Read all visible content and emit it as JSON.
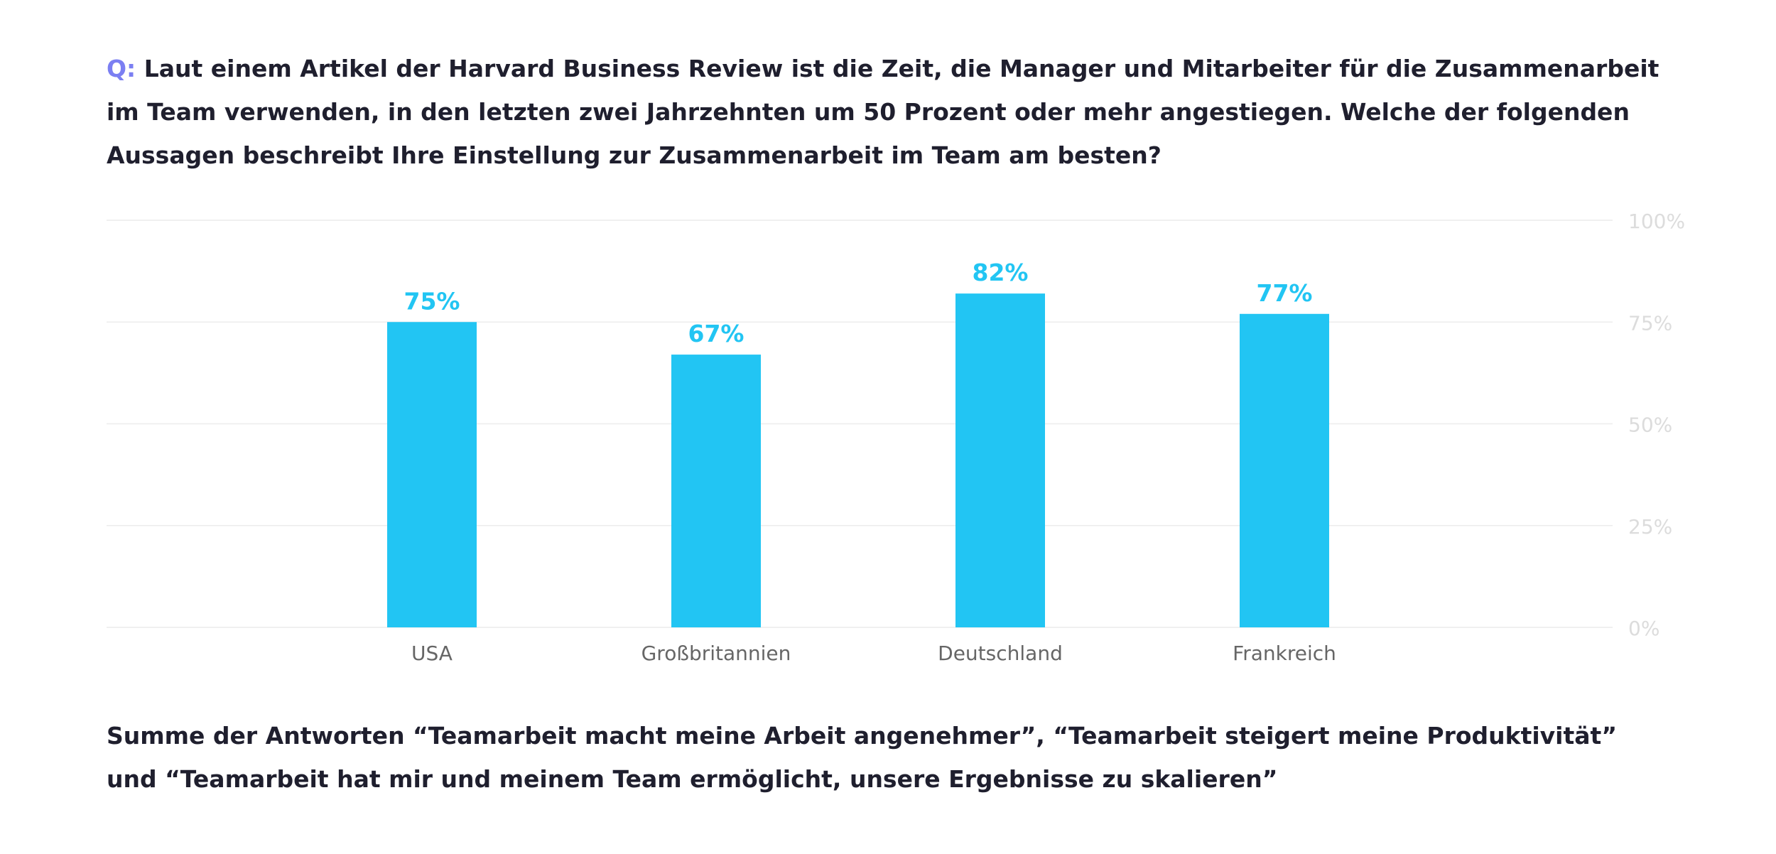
{
  "question": {
    "prefix": "Q:",
    "text": "Laut einem Artikel der Harvard Business Review ist die Zeit, die Manager und Mitarbeiter für die Zusammenarbeit im Team verwenden, in den letzten zwei Jahrzehnten um 50 Prozent oder mehr angestiegen. Welche der folgenden Aussagen beschreibt Ihre Einstellung zur Zusammenarbeit im Team am besten?"
  },
  "footnote": "Summe der Antworten “Teamarbeit macht meine Arbeit angenehmer”, “Teamarbeit steigert meine Produktivität” und “Teamarbeit hat mir und meinem Team ermöglicht, unsere Ergebnisse zu skalieren”",
  "colors": {
    "bar": "#22c5f3",
    "value_label": "#22c5f3",
    "prefix": "#7b7ff2",
    "grid": "#ececec",
    "axis_label": "#dcdcdc",
    "category_label": "#666666"
  },
  "chart_data": {
    "type": "bar",
    "categories": [
      "USA",
      "Großbritannien",
      "Deutschland",
      "Frankreich"
    ],
    "values": [
      75,
      67,
      82,
      77
    ],
    "value_labels": [
      "75%",
      "67%",
      "82%",
      "77%"
    ],
    "ylim": [
      0,
      100
    ],
    "yticks": [
      0,
      25,
      50,
      75,
      100
    ],
    "ytick_labels": [
      "0%",
      "25%",
      "50%",
      "75%",
      "100%"
    ],
    "y_axis_side": "right",
    "grid": true
  }
}
